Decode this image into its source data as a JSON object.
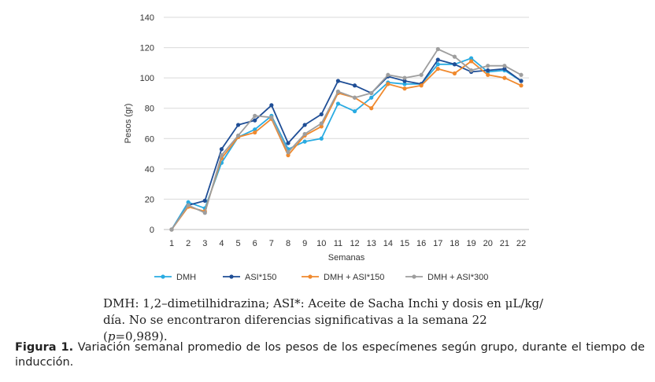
{
  "chart_data": {
    "type": "line",
    "title": "",
    "xlabel": "Semanas",
    "ylabel": "Pesos (gr)",
    "ylim": [
      0,
      140
    ],
    "yticks": [
      0,
      20,
      40,
      60,
      80,
      100,
      120,
      140
    ],
    "grid": "horizontal",
    "legend_position": "bottom",
    "categories": [
      "1",
      "2",
      "3",
      "4",
      "5",
      "6",
      "7",
      "8",
      "9",
      "10",
      "11",
      "12",
      "13",
      "14",
      "15",
      "16",
      "17",
      "18",
      "19",
      "20",
      "21",
      "22"
    ],
    "series": [
      {
        "name": "DMH",
        "color": "#29ABE2",
        "values": [
          0,
          18,
          14,
          44,
          61,
          66,
          75,
          53,
          58,
          60,
          83,
          78,
          87,
          97,
          96,
          96,
          109,
          109,
          113,
          104,
          105,
          98
        ]
      },
      {
        "name": "ASI*150",
        "color": "#1F4E96",
        "values": [
          0,
          16,
          19,
          53,
          69,
          72,
          82,
          57,
          69,
          76,
          98,
          95,
          90,
          101,
          98,
          96,
          112,
          109,
          104,
          105,
          106,
          98
        ]
      },
      {
        "name": "DMH + ASI*150",
        "color": "#F0892D",
        "values": [
          0,
          15,
          12,
          47,
          61,
          64,
          73,
          49,
          62,
          68,
          90,
          87,
          80,
          96,
          93,
          95,
          106,
          103,
          111,
          102,
          100,
          95
        ]
      },
      {
        "name": "DMH + ASI*300",
        "color": "#9E9E9E",
        "values": [
          0,
          16,
          11,
          49,
          62,
          75,
          74,
          51,
          63,
          70,
          91,
          87,
          90,
          102,
          100,
          102,
          119,
          114,
          105,
          108,
          108,
          102
        ]
      }
    ]
  },
  "note": {
    "line1": "DMH: 1,2–dimetilhidrazina; ASI*: Aceite de Sacha Inchi y dosis en μL/kg/",
    "line2_prefix": "día. No se encontraron diferencias significativas a la semana 22 (",
    "line2_p": "p",
    "line2_suffix": "=0,989)."
  },
  "caption": {
    "label": "Figura 1.",
    "text": " Variación semanal promedio de los pesos de los especímenes según grupo, durante el tiempo de inducción."
  }
}
